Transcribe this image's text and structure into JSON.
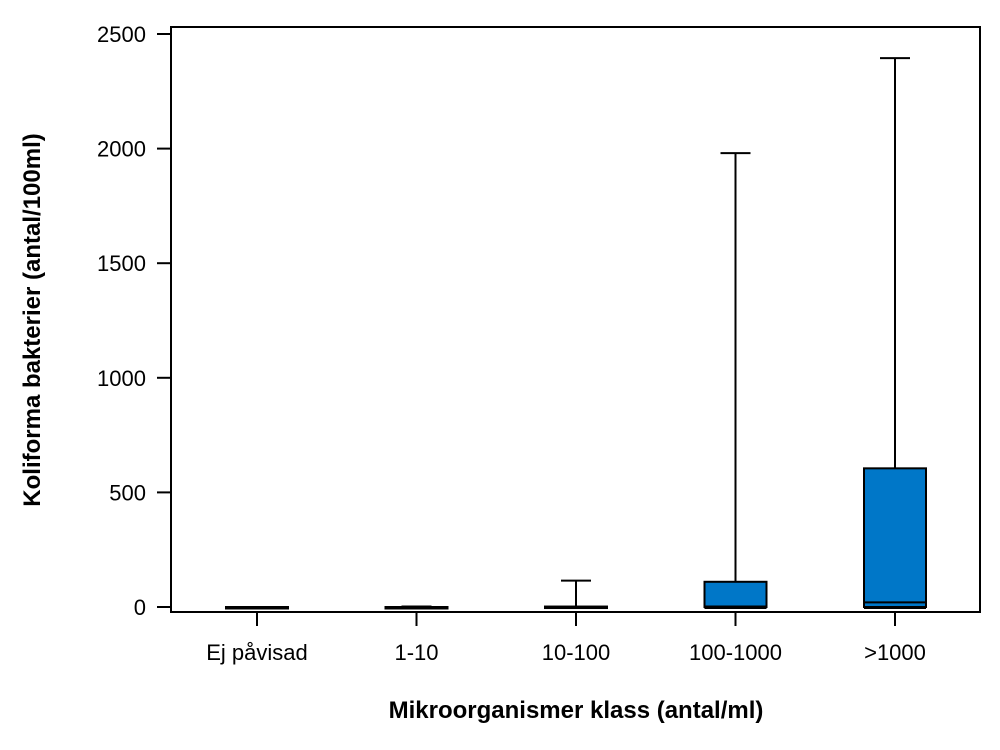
{
  "chart_data": {
    "type": "box",
    "title": "",
    "xlabel": "Mikroorganismer klass (antal/ml)",
    "ylabel": "Koliforma bakterier (antal/100ml)",
    "ylim": [
      -25,
      2530
    ],
    "yticks": [
      0,
      500,
      1000,
      1500,
      2000,
      2500
    ],
    "grid": false,
    "legend": "none",
    "box_color": "#0077C8",
    "categories": [
      "Ej påvisad",
      "1-10",
      "10-100",
      "100-1000",
      ">1000"
    ],
    "boxes": [
      {
        "min": 0,
        "q1": 0,
        "median": 0,
        "q3": 0,
        "max": 0
      },
      {
        "min": 0,
        "q1": 0,
        "median": 0,
        "q3": 0,
        "max": 2
      },
      {
        "min": 0,
        "q1": 0,
        "median": 0,
        "q3": 2,
        "max": 115
      },
      {
        "min": 0,
        "q1": 0,
        "median": 2,
        "q3": 110,
        "max": 1980
      },
      {
        "min": 0,
        "q1": 0,
        "median": 20,
        "q3": 605,
        "max": 2395
      }
    ]
  }
}
